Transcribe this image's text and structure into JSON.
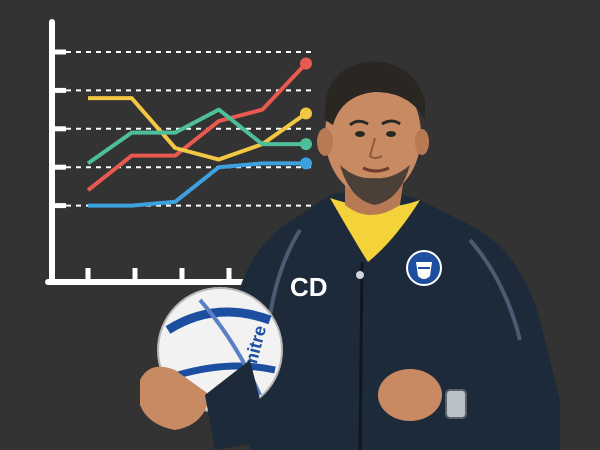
{
  "colors": {
    "background": "#333333",
    "axis": "#ffffff",
    "gridline": "#ffffff",
    "line_red": "#e85a4f",
    "line_yellow": "#f2c744",
    "line_green": "#4dbf9a",
    "line_blue": "#3da1e0",
    "jacket": "#1d2a3a",
    "shirt_collar": "#f3d23a",
    "skin": "#c88a63",
    "hair": "#2a2622",
    "ball_white": "#f2f2f2",
    "ball_blue": "#1c4fa0"
  },
  "illustration": {
    "badge_initials": "CD",
    "ball_brand": "mitre"
  },
  "icons": {
    "line_chart": "line-chart-illustration",
    "crest": "club-crest-icon"
  },
  "chart_data": {
    "type": "line",
    "x": [
      0,
      1,
      2,
      3,
      4,
      5
    ],
    "ylim": [
      0,
      5
    ],
    "grid": true,
    "series": [
      {
        "color": "red",
        "values": [
          1.4,
          2.3,
          2.3,
          3.2,
          3.5,
          4.7
        ]
      },
      {
        "color": "yellow",
        "values": [
          3.8,
          3.8,
          2.5,
          2.2,
          2.6,
          3.4
        ]
      },
      {
        "color": "green",
        "values": [
          2.1,
          2.9,
          2.9,
          3.5,
          2.6,
          2.6
        ]
      },
      {
        "color": "blue",
        "values": [
          1.0,
          1.0,
          1.1,
          2.0,
          2.1,
          2.1
        ]
      }
    ]
  }
}
